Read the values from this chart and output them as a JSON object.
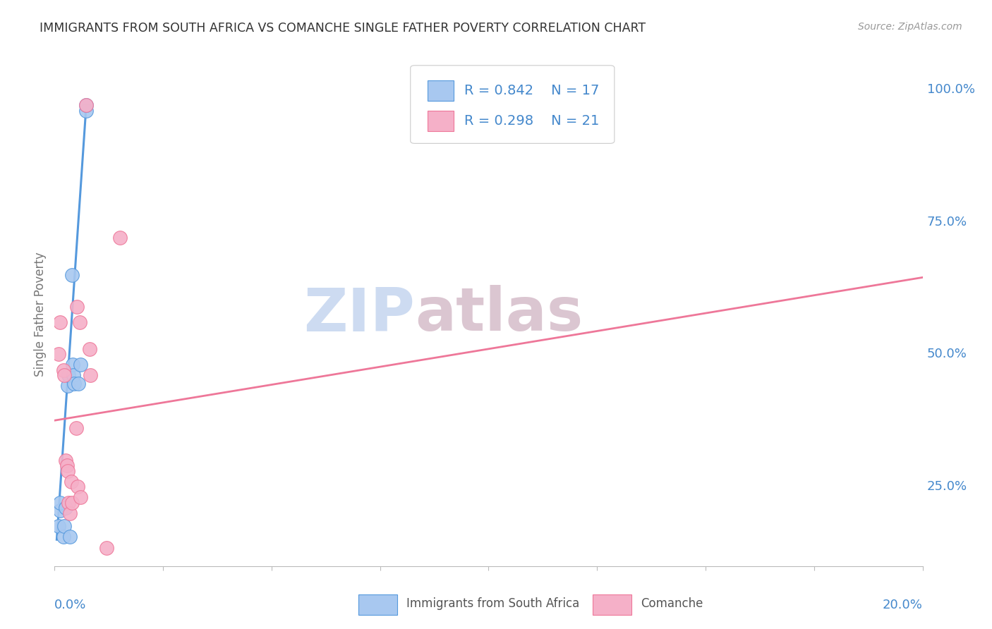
{
  "title": "IMMIGRANTS FROM SOUTH AFRICA VS COMANCHE SINGLE FATHER POVERTY CORRELATION CHART",
  "source": "Source: ZipAtlas.com",
  "ylabel": "Single Father Poverty",
  "right_yticks_vals": [
    1.0,
    0.75,
    0.5,
    0.25
  ],
  "right_yticks_labels": [
    "100.0%",
    "75.0%",
    "50.0%",
    "25.0%"
  ],
  "legend_label_blue": "Immigrants from South Africa",
  "legend_label_pink": "Comanche",
  "R_blue": 0.842,
  "N_blue": 17,
  "R_pink": 0.298,
  "N_pink": 21,
  "blue_scatter": [
    [
      0.1,
      0.175
    ],
    [
      0.12,
      0.205
    ],
    [
      0.13,
      0.22
    ],
    [
      0.2,
      0.155
    ],
    [
      0.22,
      0.175
    ],
    [
      0.25,
      0.21
    ],
    [
      0.3,
      0.44
    ],
    [
      0.32,
      0.46
    ],
    [
      0.35,
      0.155
    ],
    [
      0.4,
      0.65
    ],
    [
      0.42,
      0.48
    ],
    [
      0.43,
      0.46
    ],
    [
      0.45,
      0.445
    ],
    [
      0.55,
      0.445
    ],
    [
      0.6,
      0.48
    ],
    [
      0.72,
      0.96
    ],
    [
      0.73,
      0.97
    ]
  ],
  "pink_scatter": [
    [
      0.1,
      0.5
    ],
    [
      0.12,
      0.56
    ],
    [
      0.2,
      0.47
    ],
    [
      0.22,
      0.46
    ],
    [
      0.25,
      0.3
    ],
    [
      0.28,
      0.29
    ],
    [
      0.3,
      0.28
    ],
    [
      0.32,
      0.22
    ],
    [
      0.35,
      0.2
    ],
    [
      0.38,
      0.26
    ],
    [
      0.4,
      0.22
    ],
    [
      0.5,
      0.36
    ],
    [
      0.52,
      0.59
    ],
    [
      0.53,
      0.25
    ],
    [
      0.58,
      0.56
    ],
    [
      0.6,
      0.23
    ],
    [
      0.72,
      0.97
    ],
    [
      0.8,
      0.51
    ],
    [
      0.82,
      0.46
    ],
    [
      1.2,
      0.135
    ],
    [
      1.5,
      0.72
    ]
  ],
  "blue_line_x": [
    0.05,
    0.73
  ],
  "blue_line_y": [
    0.15,
    0.97
  ],
  "pink_line_x": [
    0.0,
    20.0
  ],
  "pink_line_y": [
    0.375,
    0.645
  ],
  "blue_color": "#A8C8F0",
  "pink_color": "#F5B0C8",
  "blue_line_color": "#5599DD",
  "pink_line_color": "#EE7799",
  "legend_text_color": "#4488CC",
  "axis_label_color": "#4488CC",
  "background_color": "#FFFFFF",
  "grid_color": "#DDDDDD",
  "watermark_zip_color": "#C8D8F0",
  "watermark_atlas_color": "#D8C0CC",
  "xlim": [
    0.0,
    20.0
  ],
  "ylim": [
    0.1,
    1.05
  ]
}
